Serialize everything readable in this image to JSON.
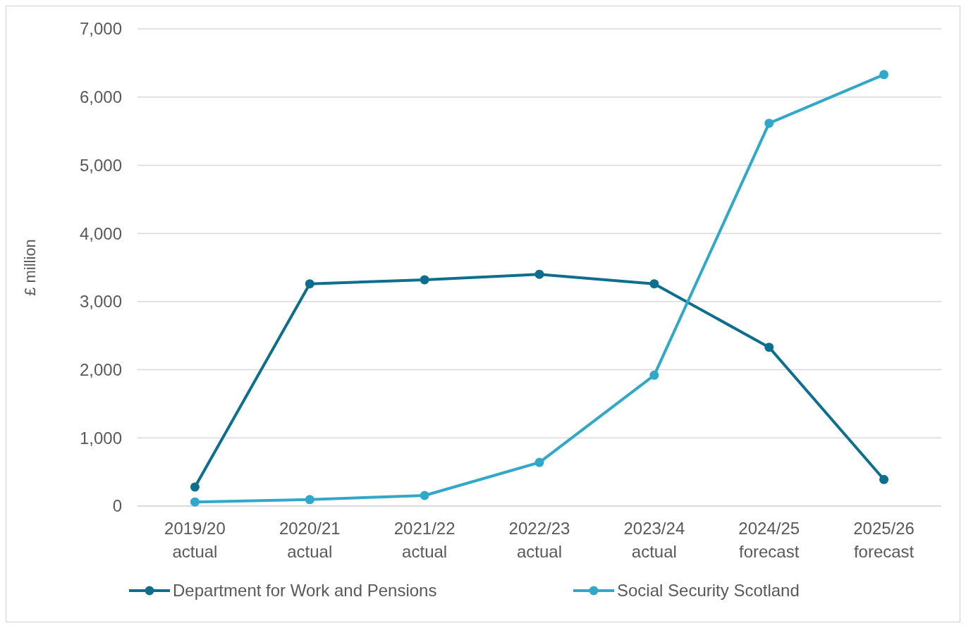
{
  "chart_data": {
    "type": "line",
    "ylabel": "£ million",
    "categories": [
      "2019/20 actual",
      "2020/21 actual",
      "2021/22 actual",
      "2022/23 actual",
      "2023/24 actual",
      "2024/25 forecast",
      "2025/26 forecast"
    ],
    "series": [
      {
        "name": "Department for Work and Pensions",
        "color": "#0e6e8e",
        "values": [
          280,
          3260,
          3320,
          3400,
          3260,
          2330,
          390
        ]
      },
      {
        "name": "Social Security Scotland",
        "color": "#31a7c9",
        "values": [
          60,
          95,
          155,
          640,
          1920,
          5615,
          6330
        ]
      }
    ],
    "ylim": [
      0,
      7000
    ],
    "yticks": [
      {
        "value": 0,
        "label": "0"
      },
      {
        "value": 1000,
        "label": "1,000"
      },
      {
        "value": 2000,
        "label": "2,000"
      },
      {
        "value": 3000,
        "label": "3,000"
      },
      {
        "value": 4000,
        "label": "4,000"
      },
      {
        "value": 5000,
        "label": "5,000"
      },
      {
        "value": 6000,
        "label": "6,000"
      },
      {
        "value": 7000,
        "label": "7,000"
      }
    ],
    "grid": "y",
    "legend": "bottom",
    "marker": "circle",
    "line_style": "solid"
  }
}
